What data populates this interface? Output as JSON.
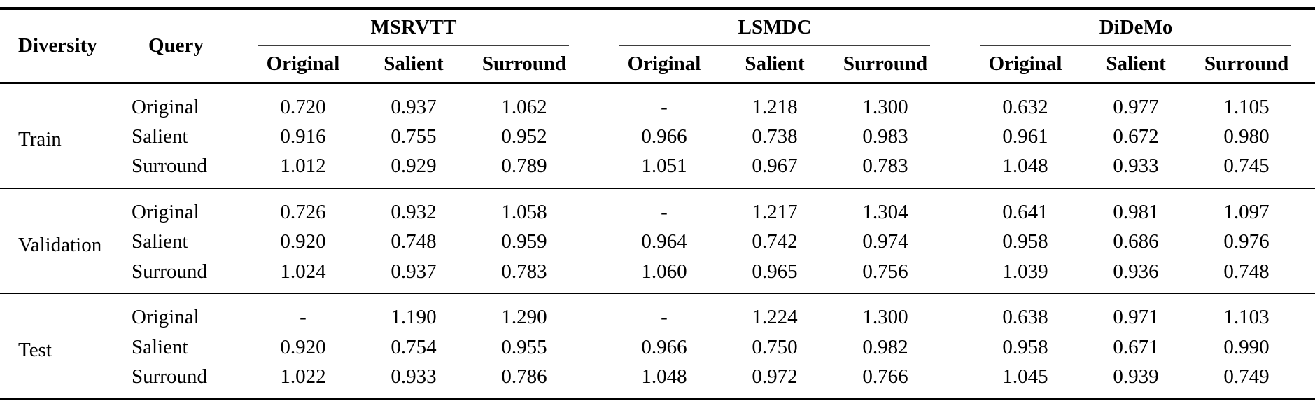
{
  "table": {
    "col1_header": "Diversity",
    "col2_header": "Query",
    "groups": [
      {
        "label": "MSRVTT",
        "subcols": [
          "Original",
          "Salient",
          "Surround"
        ]
      },
      {
        "label": "LSMDC",
        "subcols": [
          "Original",
          "Salient",
          "Surround"
        ]
      },
      {
        "label": "DiDeMo",
        "subcols": [
          "Original",
          "Salient",
          "Surround"
        ]
      }
    ],
    "sections": [
      {
        "diversity": "Train",
        "rows": [
          {
            "query": "Original",
            "values": [
              "0.720",
              "0.937",
              "1.062",
              "-",
              "1.218",
              "1.300",
              "0.632",
              "0.977",
              "1.105"
            ]
          },
          {
            "query": "Salient",
            "values": [
              "0.916",
              "0.755",
              "0.952",
              "0.966",
              "0.738",
              "0.983",
              "0.961",
              "0.672",
              "0.980"
            ]
          },
          {
            "query": "Surround",
            "values": [
              "1.012",
              "0.929",
              "0.789",
              "1.051",
              "0.967",
              "0.783",
              "1.048",
              "0.933",
              "0.745"
            ]
          }
        ]
      },
      {
        "diversity": "Validation",
        "rows": [
          {
            "query": "Original",
            "values": [
              "0.726",
              "0.932",
              "1.058",
              "-",
              "1.217",
              "1.304",
              "0.641",
              "0.981",
              "1.097"
            ]
          },
          {
            "query": "Salient",
            "values": [
              "0.920",
              "0.748",
              "0.959",
              "0.964",
              "0.742",
              "0.974",
              "0.958",
              "0.686",
              "0.976"
            ]
          },
          {
            "query": "Surround",
            "values": [
              "1.024",
              "0.937",
              "0.783",
              "1.060",
              "0.965",
              "0.756",
              "1.039",
              "0.936",
              "0.748"
            ]
          }
        ]
      },
      {
        "diversity": "Test",
        "rows": [
          {
            "query": "Original",
            "values": [
              "-",
              "1.190",
              "1.290",
              "-",
              "1.224",
              "1.300",
              "0.638",
              "0.971",
              "1.103"
            ]
          },
          {
            "query": "Salient",
            "values": [
              "0.920",
              "0.754",
              "0.955",
              "0.966",
              "0.750",
              "0.982",
              "0.958",
              "0.671",
              "0.990"
            ]
          },
          {
            "query": "Surround",
            "values": [
              "1.022",
              "0.933",
              "0.786",
              "1.048",
              "0.972",
              "0.766",
              "1.045",
              "0.939",
              "0.749"
            ]
          }
        ]
      }
    ]
  },
  "chart_data": {
    "type": "table",
    "columns": [
      "Diversity",
      "Query",
      "MSRVTT Original",
      "MSRVTT Salient",
      "MSRVTT Surround",
      "LSMDC Original",
      "LSMDC Salient",
      "LSMDC Surround",
      "DiDeMo Original",
      "DiDeMo Salient",
      "DiDeMo Surround"
    ],
    "rows": [
      [
        "Train",
        "Original",
        0.72,
        0.937,
        1.062,
        null,
        1.218,
        1.3,
        0.632,
        0.977,
        1.105
      ],
      [
        "Train",
        "Salient",
        0.916,
        0.755,
        0.952,
        0.966,
        0.738,
        0.983,
        0.961,
        0.672,
        0.98
      ],
      [
        "Train",
        "Surround",
        1.012,
        0.929,
        0.789,
        1.051,
        0.967,
        0.783,
        1.048,
        0.933,
        0.745
      ],
      [
        "Validation",
        "Original",
        0.726,
        0.932,
        1.058,
        null,
        1.217,
        1.304,
        0.641,
        0.981,
        1.097
      ],
      [
        "Validation",
        "Salient",
        0.92,
        0.748,
        0.959,
        0.964,
        0.742,
        0.974,
        0.958,
        0.686,
        0.976
      ],
      [
        "Validation",
        "Surround",
        1.024,
        0.937,
        0.783,
        1.06,
        0.965,
        0.756,
        1.039,
        0.936,
        0.748
      ],
      [
        "Test",
        "Original",
        null,
        1.19,
        1.29,
        null,
        1.224,
        1.3,
        0.638,
        0.971,
        1.103
      ],
      [
        "Test",
        "Salient",
        0.92,
        0.754,
        0.955,
        0.966,
        0.75,
        0.982,
        0.958,
        0.671,
        0.99
      ],
      [
        "Test",
        "Surround",
        1.022,
        0.933,
        0.786,
        1.048,
        0.972,
        0.766,
        1.045,
        0.939,
        0.749
      ]
    ]
  }
}
